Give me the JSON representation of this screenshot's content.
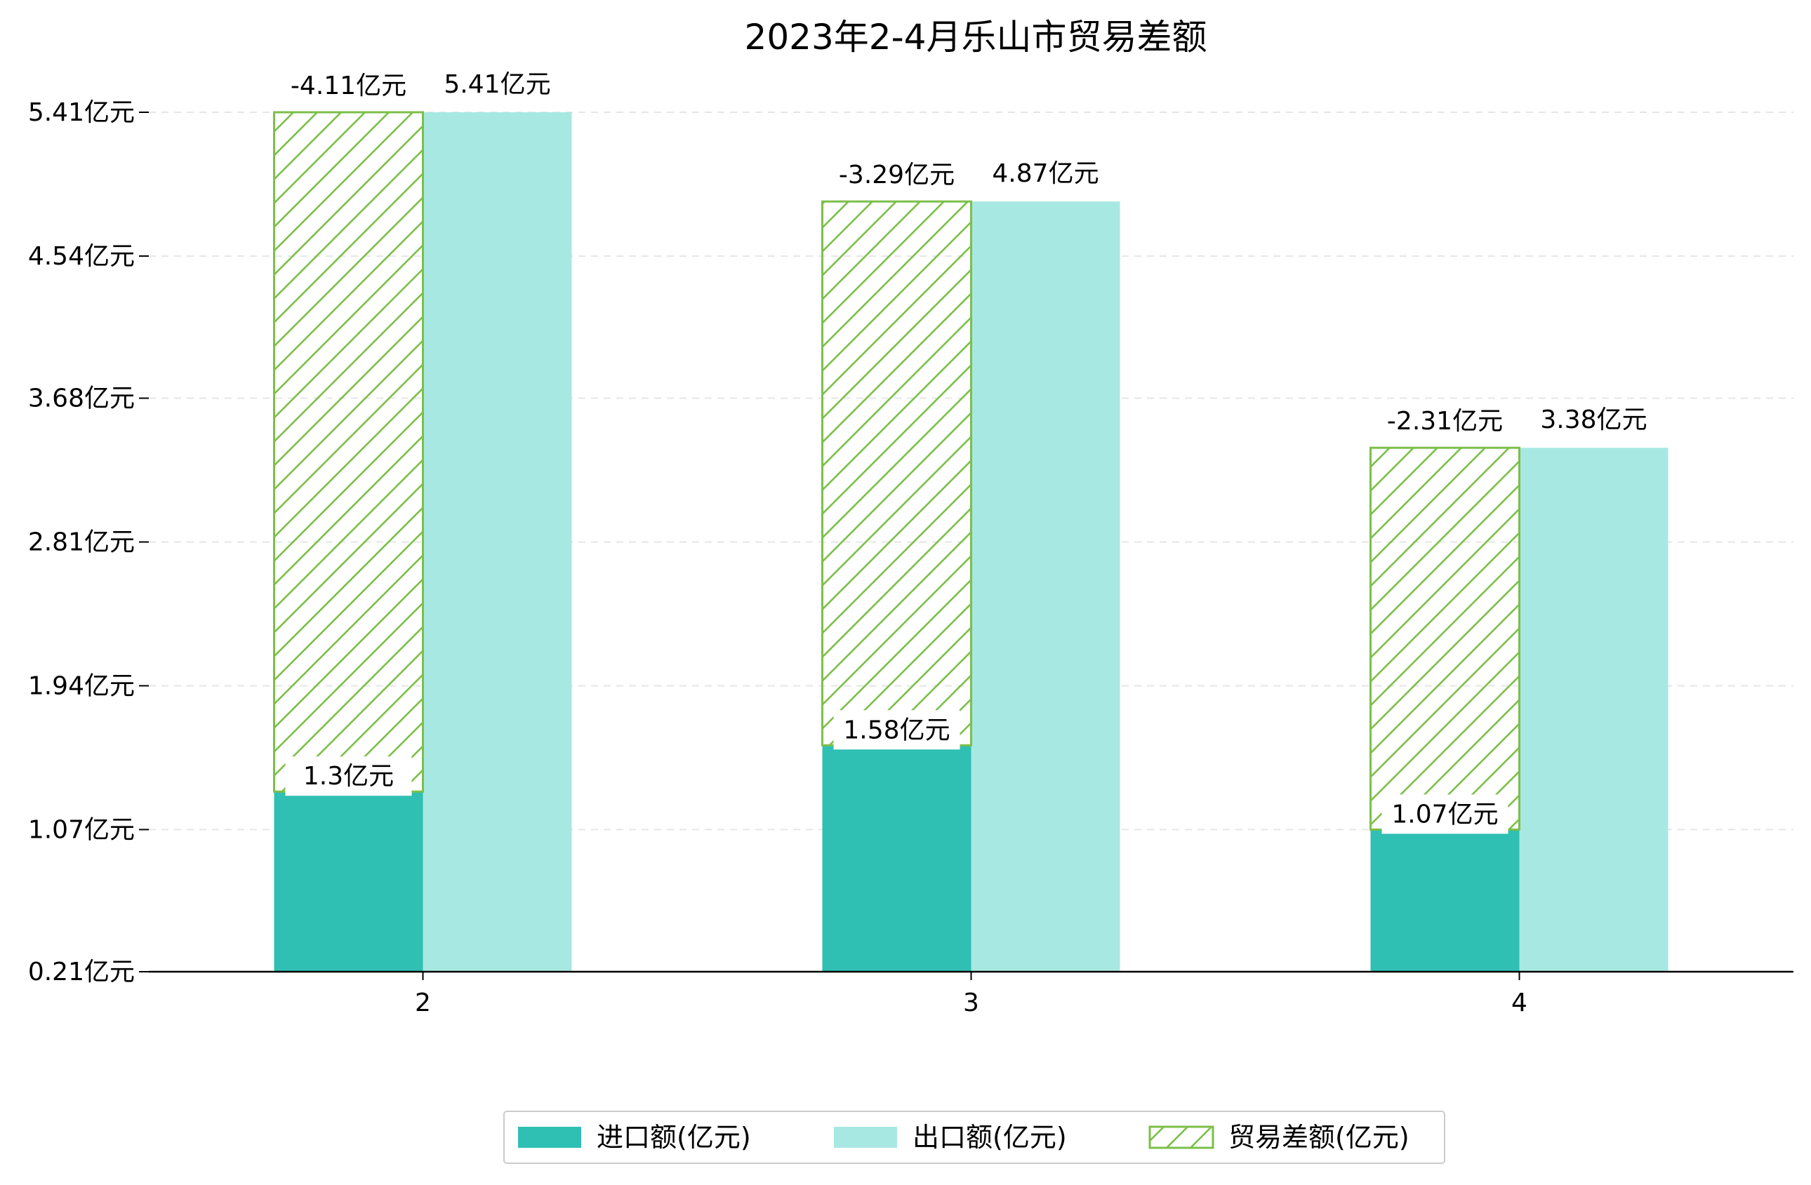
{
  "chart_data": {
    "type": "bar",
    "title": "2023年2-4月乐山市贸易差额",
    "categories": [
      "2",
      "3",
      "4"
    ],
    "series": [
      {
        "name": "进口额(亿元)",
        "values": [
          1.3,
          1.58,
          1.07
        ],
        "labels": [
          "1.3亿元",
          "1.58亿元",
          "1.07亿元"
        ],
        "color": "#2fbfb3"
      },
      {
        "name": "出口额(亿元)",
        "values": [
          5.41,
          4.87,
          3.38
        ],
        "labels": [
          "5.41亿元",
          "4.87亿元",
          "3.38亿元"
        ],
        "color": "#a8e8e2"
      },
      {
        "name": "贸易差额(亿元)",
        "values": [
          -4.11,
          -3.29,
          -2.31
        ],
        "labels": [
          "-4.11亿元",
          "-3.29亿元",
          "-2.31亿元"
        ],
        "color": "#7cbf4a",
        "style": "hatched"
      }
    ],
    "yticks": [
      0.21,
      1.07,
      1.94,
      2.81,
      3.68,
      4.54,
      5.41
    ],
    "ytick_labels": [
      "0.21亿元",
      "1.07亿元",
      "1.94亿元",
      "2.81亿元",
      "3.68亿元",
      "4.54亿元",
      "5.41亿元"
    ],
    "ylim": [
      0.21,
      5.41
    ],
    "grid": true,
    "legend_position": "bottom-center"
  }
}
